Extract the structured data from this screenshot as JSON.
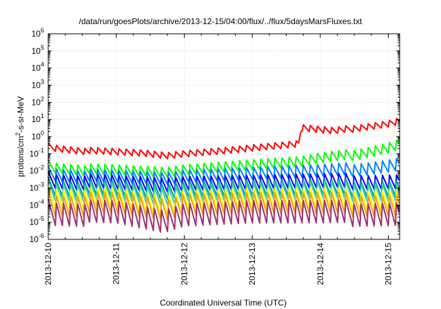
{
  "chart_data": {
    "type": "line",
    "title": "/data/run/goesPlots/archive/2013-12-15/04:00/flux/../flux/5daysMarsFluxes.txt",
    "xlabel": "Coordinated Universal Time (UTC)",
    "ylabel_base": "protons/cm",
    "ylabel_sup": "2",
    "ylabel_rest": "-s-sr-MeV",
    "y_scale": "log",
    "ylim": [
      1e-06,
      1000000.0
    ],
    "y_tick_exponents": [
      -6,
      -5,
      -4,
      -3,
      -2,
      -1,
      0,
      1,
      2,
      3,
      4,
      5,
      6
    ],
    "y_tick_base": "10",
    "xlim": [
      "2013-12-10T00:00",
      "2013-12-15T04:00"
    ],
    "x_tick_labels": [
      "2013-12-10",
      "2013-12-11",
      "2013-12-12",
      "2013-12-13",
      "2013-12-14",
      "2013-12-15"
    ],
    "grid": true,
    "legend": "none",
    "sawtooth_cycles_per_day": 9.6,
    "series": [
      {
        "color": "#ff0000",
        "keyframes": [
          [
            0,
            0.25
          ],
          [
            0.5,
            0.15
          ],
          [
            1.0,
            0.12
          ],
          [
            1.4,
            0.1
          ],
          [
            1.75,
            0.07
          ],
          [
            2.0,
            0.09
          ],
          [
            2.6,
            0.14
          ],
          [
            3.0,
            0.2
          ],
          [
            3.5,
            0.3
          ],
          [
            3.68,
            0.35
          ],
          [
            3.72,
            3.0
          ],
          [
            4.2,
            2.0
          ],
          [
            4.6,
            3.5
          ],
          [
            5.0,
            6.0
          ],
          [
            5.17,
            9.0
          ]
        ]
      },
      {
        "color": "#00ff00",
        "keyframes": [
          [
            0,
            0.018
          ],
          [
            0.5,
            0.012
          ],
          [
            1.0,
            0.01
          ],
          [
            1.75,
            0.007
          ],
          [
            2.0,
            0.01
          ],
          [
            3.0,
            0.02
          ],
          [
            3.7,
            0.03
          ],
          [
            4.0,
            0.05
          ],
          [
            4.5,
            0.09
          ],
          [
            5.0,
            0.25
          ],
          [
            5.17,
            0.4
          ]
        ]
      },
      {
        "color": "#0080ff",
        "keyframes": [
          [
            0,
            0.007
          ],
          [
            0.5,
            0.005
          ],
          [
            1.0,
            0.004
          ],
          [
            1.75,
            0.003
          ],
          [
            2.0,
            0.004
          ],
          [
            3.0,
            0.006
          ],
          [
            4.0,
            0.009
          ],
          [
            4.5,
            0.012
          ],
          [
            5.0,
            0.022
          ],
          [
            5.17,
            0.03
          ]
        ]
      },
      {
        "color": "#0000ff",
        "keyframes": [
          [
            0,
            0.003
          ],
          [
            1.0,
            0.0018
          ],
          [
            1.75,
            0.0012
          ],
          [
            2.0,
            0.0015
          ],
          [
            3.0,
            0.0018
          ],
          [
            4.0,
            0.0022
          ],
          [
            5.17,
            0.0028
          ]
        ]
      },
      {
        "color": "#00a0a0",
        "keyframes": [
          [
            0,
            0.0012
          ],
          [
            1.0,
            0.0008
          ],
          [
            1.75,
            0.0005
          ],
          [
            2.0,
            0.0007
          ],
          [
            3.0,
            0.0008
          ],
          [
            4.0,
            0.0009
          ],
          [
            5.17,
            0.0011
          ]
        ]
      },
      {
        "color": "#40d0a0",
        "keyframes": [
          [
            0,
            0.0007
          ],
          [
            1.0,
            0.0005
          ],
          [
            1.75,
            0.00025
          ],
          [
            2.0,
            0.0004
          ],
          [
            3.0,
            0.0005
          ],
          [
            4.0,
            0.0006
          ],
          [
            5.17,
            0.0007
          ]
        ]
      },
      {
        "color": "#ffff00",
        "keyframes": [
          [
            0,
            0.0003
          ],
          [
            1.0,
            0.0002
          ],
          [
            1.75,
            7e-05
          ],
          [
            2.0,
            0.00015
          ],
          [
            3.0,
            0.0002
          ],
          [
            4.0,
            0.0002
          ],
          [
            5.17,
            0.00025
          ]
        ]
      },
      {
        "color": "#e8a020",
        "keyframes": [
          [
            0,
            0.00012
          ],
          [
            1.0,
            0.0001
          ],
          [
            1.75,
            4e-05
          ],
          [
            2.0,
            8e-05
          ],
          [
            3.0,
            0.0001
          ],
          [
            4.0,
            0.0001
          ],
          [
            5.17,
            0.00012
          ]
        ]
      },
      {
        "color": "#a03070",
        "keyframes": [
          [
            0,
            4e-05
          ],
          [
            1.0,
            3e-05
          ],
          [
            1.7,
            8e-06
          ],
          [
            2.0,
            2e-05
          ],
          [
            3.0,
            3e-05
          ],
          [
            4.0,
            3e-05
          ],
          [
            5.17,
            4e-05
          ]
        ]
      }
    ]
  }
}
